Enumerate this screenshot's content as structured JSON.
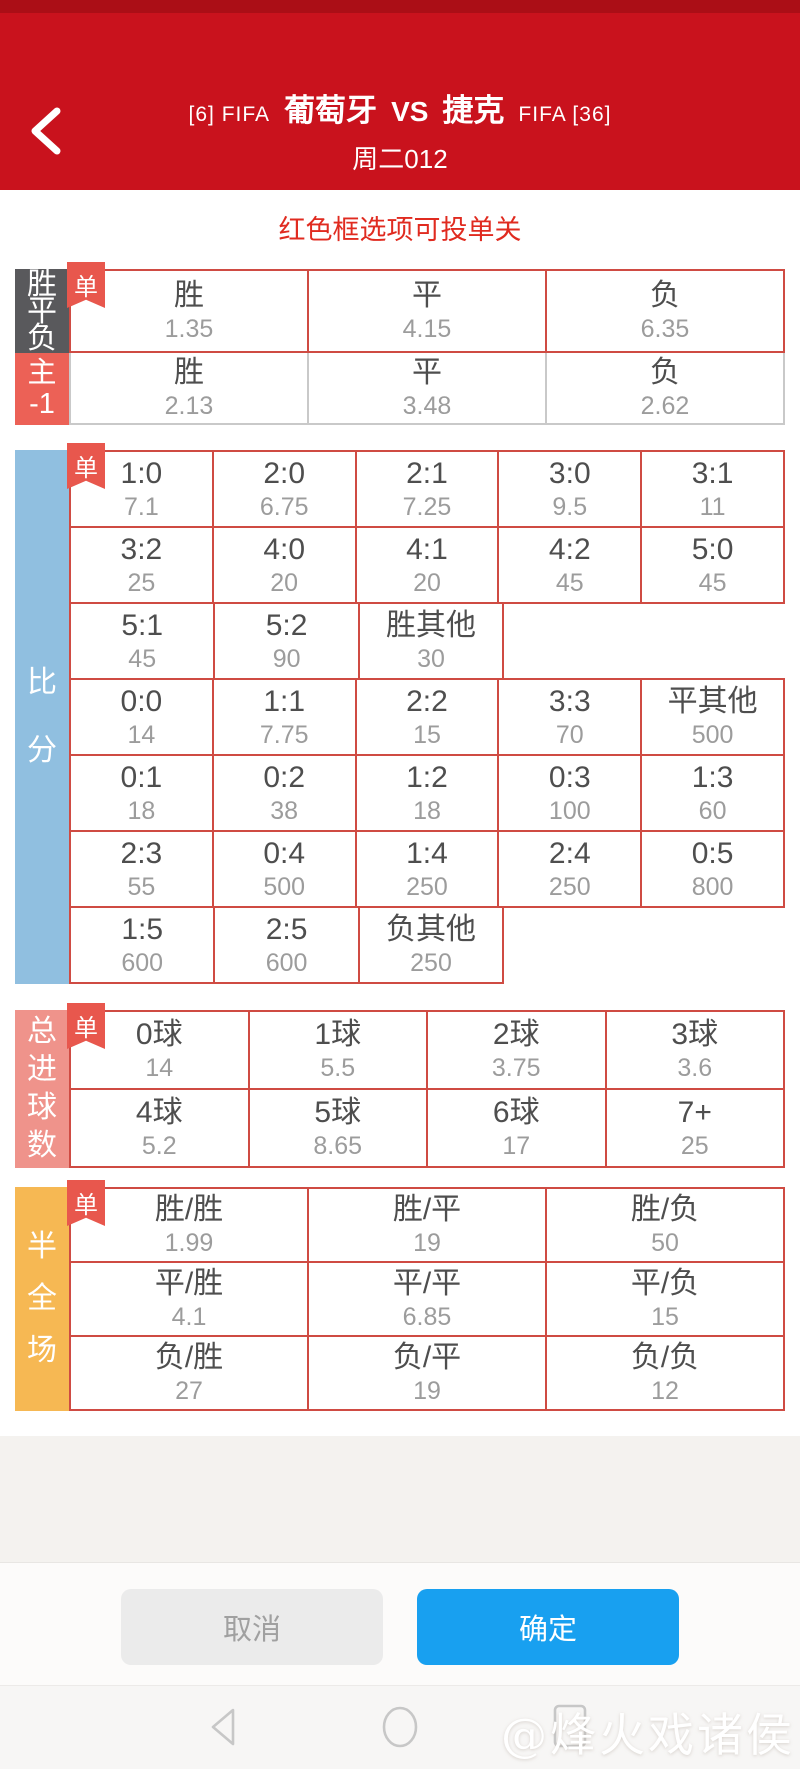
{
  "header": {
    "title_prefix": "[6]  FIFA",
    "home_team": "葡萄牙",
    "vs": "VS",
    "away_team": "捷克",
    "title_suffix": "FIFA  [36]",
    "subtitle": "周二012"
  },
  "notice": "红色框选项可投单关",
  "single_badge": "单",
  "sections": {
    "spf": {
      "label_lines": [
        "胜",
        "平",
        "负"
      ],
      "rows": [
        {
          "cells": [
            {
              "label": "胜",
              "odds": "1.35"
            },
            {
              "label": "平",
              "odds": "4.15"
            },
            {
              "label": "负",
              "odds": "6.35"
            }
          ]
        }
      ]
    },
    "handicap": {
      "label_lines": [
        "主",
        "-1"
      ],
      "rows": [
        {
          "cells": [
            {
              "label": "胜",
              "odds": "2.13"
            },
            {
              "label": "平",
              "odds": "3.48"
            },
            {
              "label": "负",
              "odds": "2.62"
            }
          ]
        }
      ]
    },
    "score": {
      "label_lines": [
        "比",
        "分"
      ],
      "rows": [
        {
          "cells": [
            {
              "label": "1:0",
              "odds": "7.1"
            },
            {
              "label": "2:0",
              "odds": "6.75"
            },
            {
              "label": "2:1",
              "odds": "7.25"
            },
            {
              "label": "3:0",
              "odds": "9.5"
            },
            {
              "label": "3:1",
              "odds": "11"
            }
          ]
        },
        {
          "cells": [
            {
              "label": "3:2",
              "odds": "25"
            },
            {
              "label": "4:0",
              "odds": "20"
            },
            {
              "label": "4:1",
              "odds": "20"
            },
            {
              "label": "4:2",
              "odds": "45"
            },
            {
              "label": "5:0",
              "odds": "45"
            }
          ]
        },
        {
          "cells": [
            {
              "label": "5:1",
              "odds": "45"
            },
            {
              "label": "5:2",
              "odds": "90"
            },
            {
              "label": "胜其他",
              "odds": "30"
            }
          ]
        },
        {
          "cells": [
            {
              "label": "0:0",
              "odds": "14"
            },
            {
              "label": "1:1",
              "odds": "7.75"
            },
            {
              "label": "2:2",
              "odds": "15"
            },
            {
              "label": "3:3",
              "odds": "70"
            },
            {
              "label": "平其他",
              "odds": "500"
            }
          ]
        },
        {
          "cells": [
            {
              "label": "0:1",
              "odds": "18"
            },
            {
              "label": "0:2",
              "odds": "38"
            },
            {
              "label": "1:2",
              "odds": "18"
            },
            {
              "label": "0:3",
              "odds": "100"
            },
            {
              "label": "1:3",
              "odds": "60"
            }
          ]
        },
        {
          "cells": [
            {
              "label": "2:3",
              "odds": "55"
            },
            {
              "label": "0:4",
              "odds": "500"
            },
            {
              "label": "1:4",
              "odds": "250"
            },
            {
              "label": "2:4",
              "odds": "250"
            },
            {
              "label": "0:5",
              "odds": "800"
            }
          ]
        },
        {
          "cells": [
            {
              "label": "1:5",
              "odds": "600"
            },
            {
              "label": "2:5",
              "odds": "600"
            },
            {
              "label": "负其他",
              "odds": "250"
            }
          ]
        }
      ]
    },
    "total_goals": {
      "label_lines": [
        "总",
        "进",
        "球",
        "数"
      ],
      "rows": [
        {
          "cells": [
            {
              "label": "0球",
              "odds": "14"
            },
            {
              "label": "1球",
              "odds": "5.5"
            },
            {
              "label": "2球",
              "odds": "3.75"
            },
            {
              "label": "3球",
              "odds": "3.6"
            }
          ]
        },
        {
          "cells": [
            {
              "label": "4球",
              "odds": "5.2"
            },
            {
              "label": "5球",
              "odds": "8.65"
            },
            {
              "label": "6球",
              "odds": "17"
            },
            {
              "label": "7+",
              "odds": "25"
            }
          ]
        }
      ]
    },
    "half_full": {
      "label_lines": [
        "半",
        "全",
        "场"
      ],
      "rows": [
        {
          "cells": [
            {
              "label": "胜/胜",
              "odds": "1.99"
            },
            {
              "label": "胜/平",
              "odds": "19"
            },
            {
              "label": "胜/负",
              "odds": "50"
            }
          ]
        },
        {
          "cells": [
            {
              "label": "平/胜",
              "odds": "4.1"
            },
            {
              "label": "平/平",
              "odds": "6.85"
            },
            {
              "label": "平/负",
              "odds": "15"
            }
          ]
        },
        {
          "cells": [
            {
              "label": "负/胜",
              "odds": "27"
            },
            {
              "label": "负/平",
              "odds": "19"
            },
            {
              "label": "负/负",
              "odds": "12"
            }
          ]
        }
      ]
    }
  },
  "footer": {
    "cancel_label": "取消",
    "confirm_label": "确定"
  },
  "watermark": "@烽火戏诸侯",
  "colors": {
    "header_red": "#c9121d",
    "notice_red": "#e02b20",
    "box_border_red": "#cf4b43",
    "gray_border": "#c9c9c9",
    "badge_red": "#e8574d",
    "sidebar_spf": "#59595c",
    "sidebar_handicap": "#ec6156",
    "sidebar_score": "#90bfe0",
    "sidebar_total_goals": "#ef938b",
    "sidebar_half_full": "#f6b853",
    "confirm_blue": "#18a0f0",
    "cancel_gray": "#ebebeb"
  }
}
